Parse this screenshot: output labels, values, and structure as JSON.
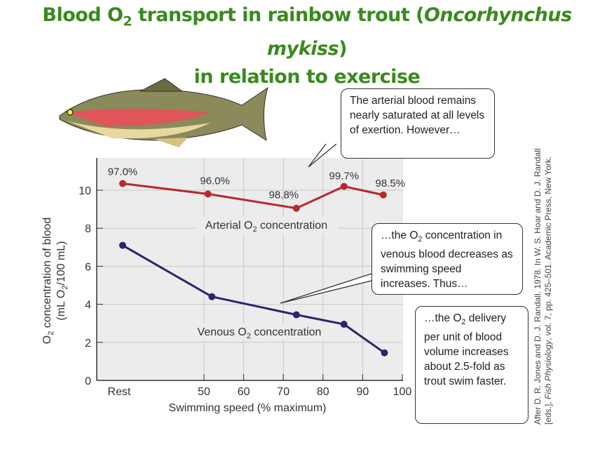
{
  "title": {
    "line1_pre": "Blood O",
    "line1_sub": "2",
    "line1_mid": " transport in rainbow trout (",
    "line1_italic": "Oncorhynchus mykiss",
    "line1_post": ")",
    "line2": "in relation to exercise"
  },
  "chart_data": {
    "type": "line",
    "xlabel": "Swimming speed (% maximum)",
    "ylabel_line1_pre": "O",
    "ylabel_line1_sub": "2",
    "ylabel_line1_post": " concentration of blood",
    "ylabel_line2_pre": "(mL O",
    "ylabel_line2_sub": "2",
    "ylabel_line2_post": "/100 mL)",
    "ylim": [
      0,
      11.5
    ],
    "xlim": [
      32,
      100
    ],
    "yticks": [
      0,
      2,
      4,
      6,
      8,
      10
    ],
    "xticks": [
      {
        "x": 36,
        "label": "Rest"
      },
      {
        "x": 50,
        "label": "50"
      },
      {
        "x": 60,
        "label": "60"
      },
      {
        "x": 70,
        "label": "70"
      },
      {
        "x": 80,
        "label": "80"
      },
      {
        "x": 90,
        "label": "90"
      },
      {
        "x": 100,
        "label": "100"
      }
    ],
    "grid": true,
    "series": [
      {
        "name_pre": "Arterial O",
        "name_sub": "2",
        "name_post": " concentration",
        "color": "#b8282c",
        "x": [
          "Rest",
          51,
          73.3,
          85.3,
          95.2
        ],
        "y": [
          10.35,
          9.8,
          9.05,
          10.2,
          9.75
        ],
        "labels": [
          "97.0%",
          "96.0%",
          "98.8%",
          "99.7%",
          "98.5%"
        ]
      },
      {
        "name_pre": "Venous O",
        "name_sub": "2",
        "name_post": " concentration",
        "color": "#2b2370",
        "x": [
          "Rest",
          52,
          73.3,
          85.3,
          95.5
        ],
        "y": [
          7.1,
          4.4,
          3.45,
          2.95,
          1.45
        ]
      }
    ]
  },
  "callouts": {
    "c1": "The arterial blood remains nearly saturated at all levels of exertion. However…",
    "c2_pre": "…the O",
    "c2_sub": "2",
    "c2_post": " concentration in venous blood decreases as swimming speed increases. Thus…",
    "c3_pre": "…the O",
    "c3_sub": "2",
    "c3_post": " delivery per unit of blood volume increases about 2.5-fold as trout swim faster."
  },
  "source": {
    "line1": "After D. R. Jones and D. J. Randall. 1978. In W. S. Hoar and D. J. Randall",
    "line2_pre": "[eds.], ",
    "line2_italic": "Fish Physiology",
    "line2_post": ", vol. 7, pp. 425–501. Academic Press, New York."
  }
}
